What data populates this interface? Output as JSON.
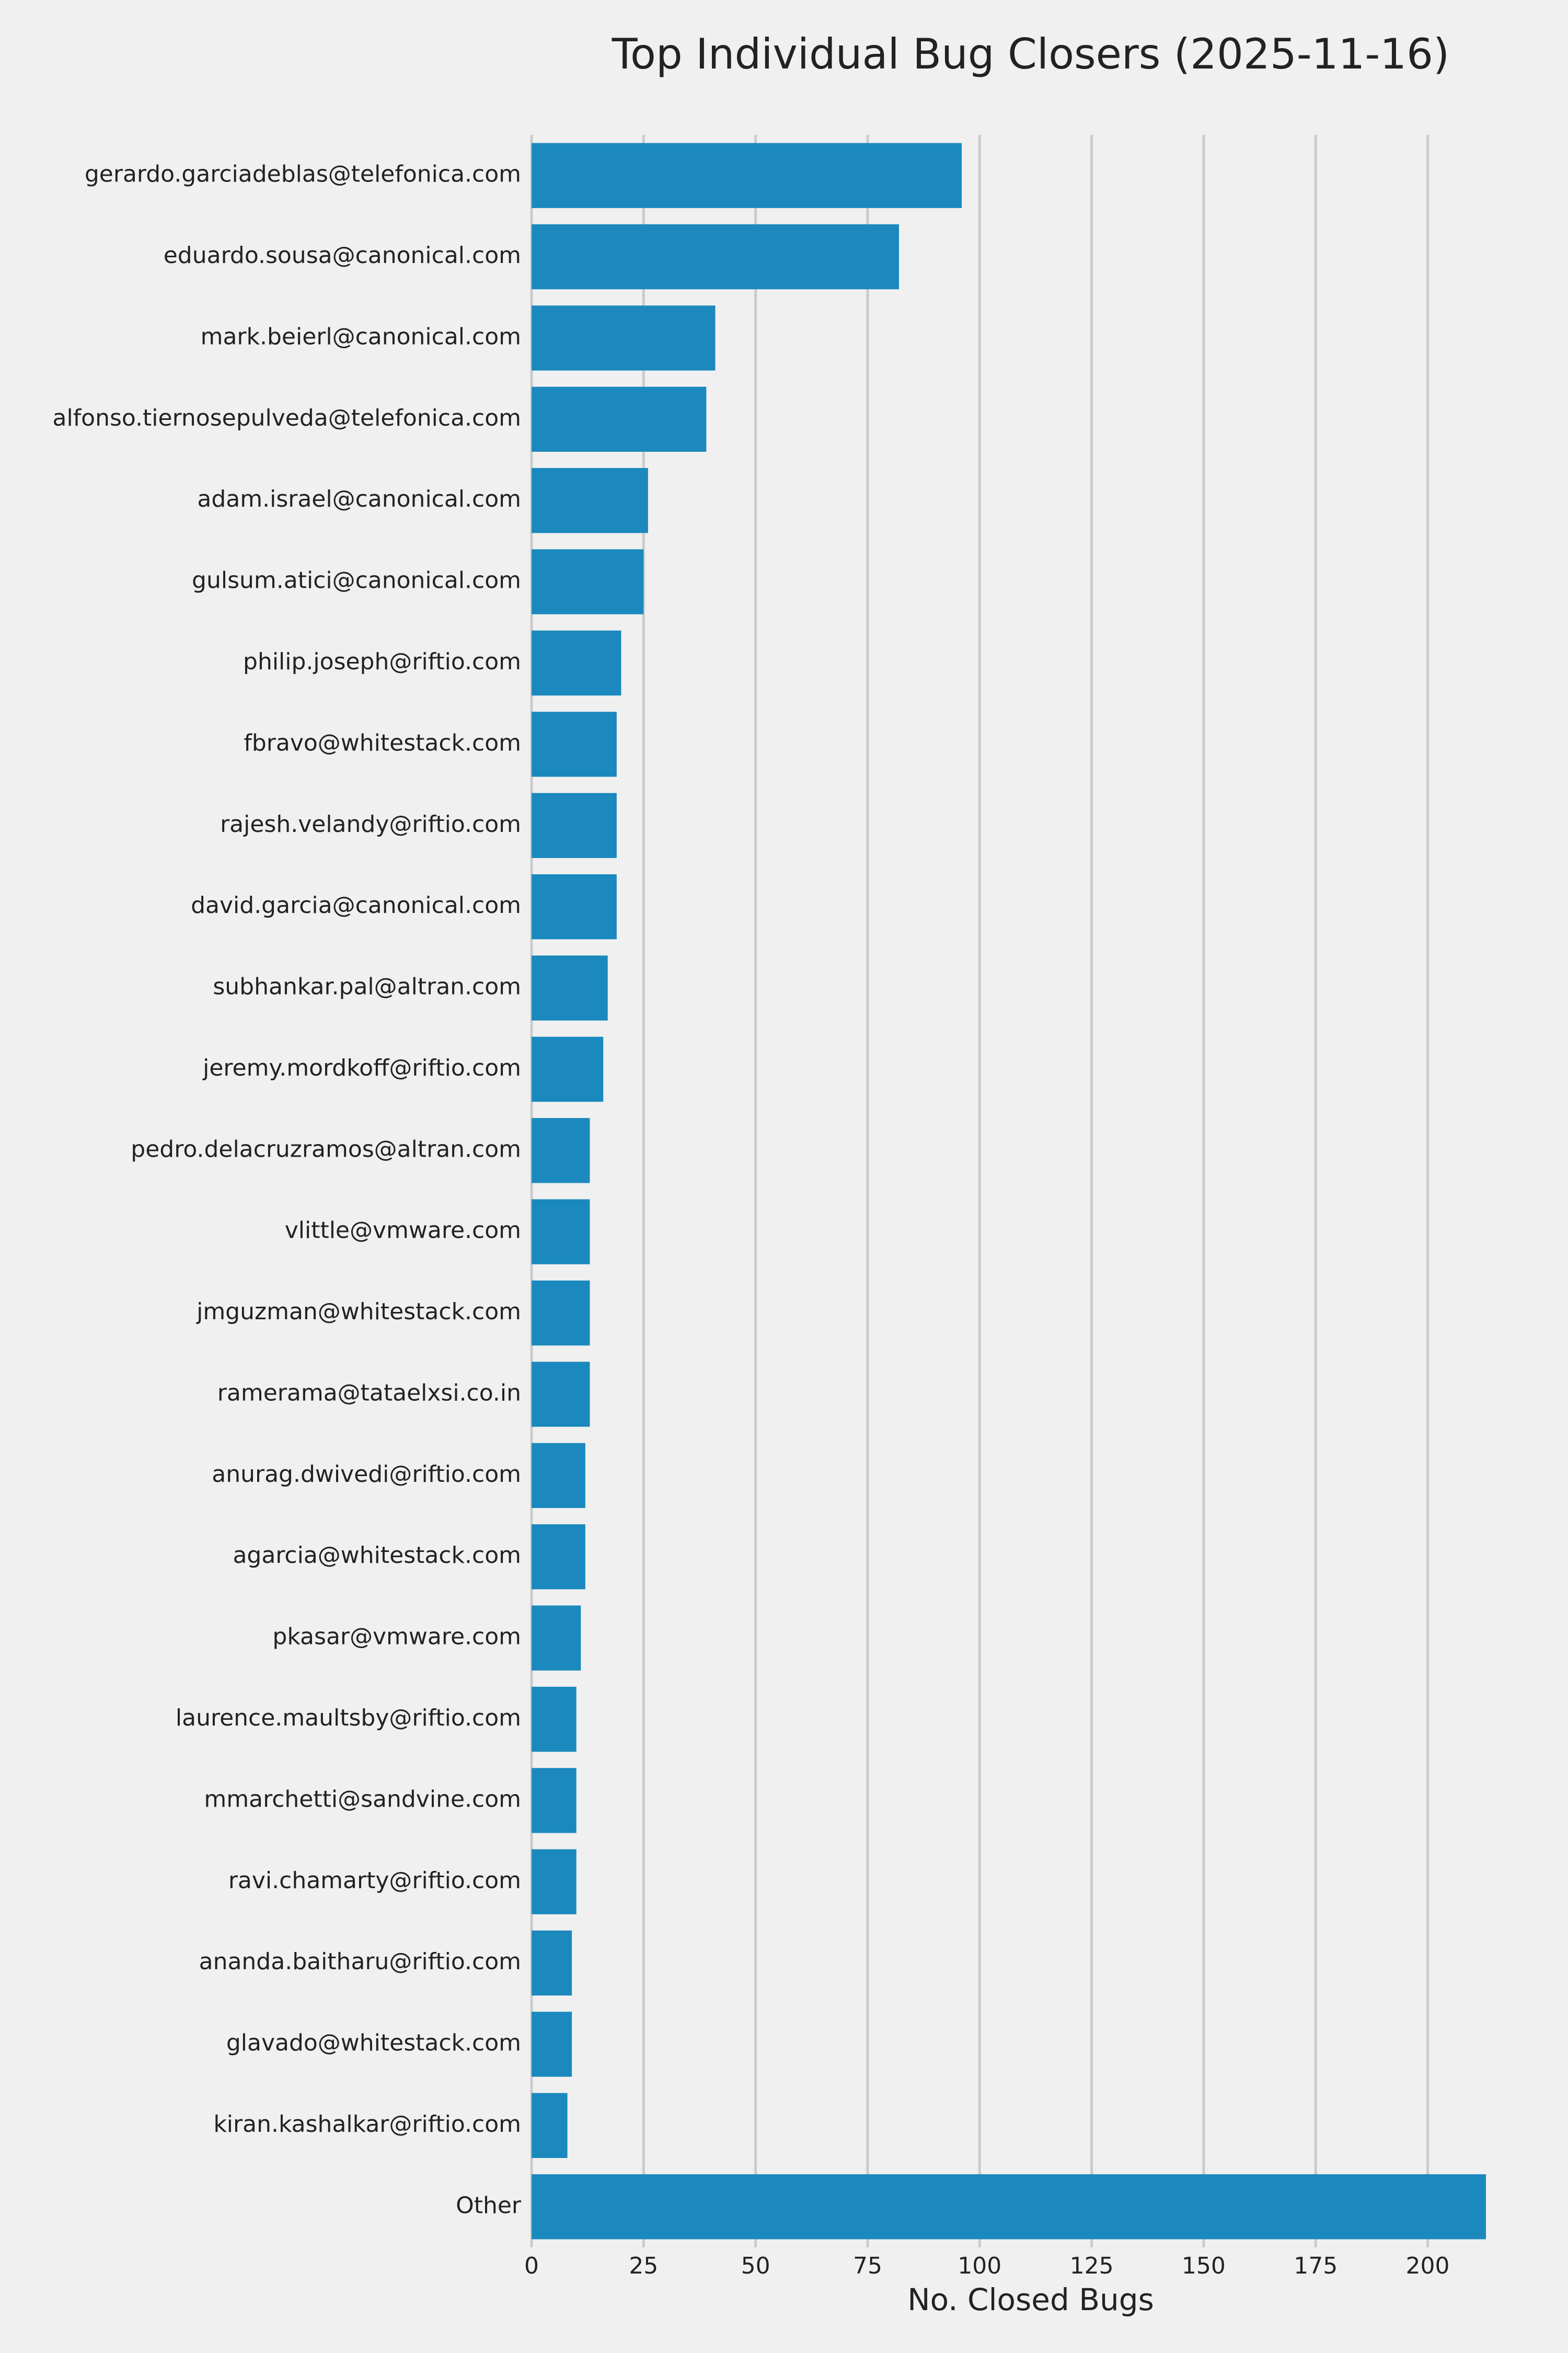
{
  "chart_data": {
    "type": "bar",
    "orientation": "horizontal",
    "title": "Top Individual Bug Closers (2025-11-16)",
    "xlabel": "No. Closed Bugs",
    "categories": [
      "gerardo.garciadeblas@telefonica.com",
      "eduardo.sousa@canonical.com",
      "mark.beierl@canonical.com",
      "alfonso.tiernosepulveda@telefonica.com",
      "adam.israel@canonical.com",
      "gulsum.atici@canonical.com",
      "philip.joseph@riftio.com",
      "fbravo@whitestack.com",
      "rajesh.velandy@riftio.com",
      "david.garcia@canonical.com",
      "subhankar.pal@altran.com",
      "jeremy.mordkoff@riftio.com",
      "pedro.delacruzramos@altran.com",
      "vlittle@vmware.com",
      "jmguzman@whitestack.com",
      "ramerama@tataelxsi.co.in",
      "anurag.dwivedi@riftio.com",
      "agarcia@whitestack.com",
      "pkasar@vmware.com",
      "laurence.maultsby@riftio.com",
      "mmarchetti@sandvine.com",
      "ravi.chamarty@riftio.com",
      "ananda.baitharu@riftio.com",
      "glavado@whitestack.com",
      "kiran.kashalkar@riftio.com",
      "Other"
    ],
    "values": [
      96,
      82,
      41,
      39,
      26,
      25,
      20,
      19,
      19,
      19,
      17,
      16,
      13,
      13,
      13,
      13,
      12,
      12,
      11,
      10,
      10,
      10,
      9,
      9,
      8,
      213
    ],
    "color": "#1b89bd",
    "xlim": [
      0,
      213
    ],
    "xticks": [
      0,
      25,
      50,
      75,
      100,
      125,
      150,
      175,
      200
    ],
    "grid": true
  }
}
